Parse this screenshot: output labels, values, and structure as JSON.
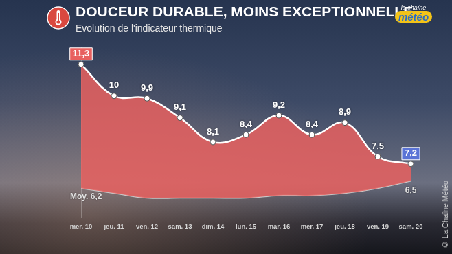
{
  "chart_data": {
    "type": "line",
    "title": "DOUCEUR DURABLE, MOINS EXCEPTIONNELLE",
    "subtitle": "Evolution de l'indicateur thermique",
    "logo": {
      "top": "la chaîne",
      "bottom": "météo"
    },
    "credit": "© La Chaîne Météo",
    "categories": [
      "mer. 10",
      "jeu. 11",
      "ven. 12",
      "sam. 13",
      "dim. 14",
      "lun. 15",
      "mar. 16",
      "mer. 17",
      "jeu. 18",
      "ven. 19",
      "sam. 20"
    ],
    "series": [
      {
        "color": "#e8605f",
        "values": [
          11.3,
          10,
          9.9,
          9.1,
          8.1,
          8.4,
          9.2,
          8.4,
          8.9,
          7.5,
          7.2
        ],
        "value_labels": [
          "11,3",
          "10",
          "9,9",
          "9,1",
          "8,1",
          "8,4",
          "9,2",
          "8,4",
          "8,9",
          "7,5",
          "7,2"
        ]
      },
      {
        "color": "#c9c9c9",
        "values": [
          6.2,
          6.0,
          5.8,
          5.8,
          5.8,
          5.8,
          5.9,
          5.9,
          6.0,
          6.2,
          6.5
        ],
        "value_labels": [
          "Moy. 6,2",
          null,
          null,
          null,
          null,
          null,
          null,
          null,
          null,
          null,
          "6,5"
        ]
      }
    ],
    "ylim": [
      5,
      12
    ],
    "grid": false,
    "tick_labels": "x",
    "data_labels": true
  }
}
